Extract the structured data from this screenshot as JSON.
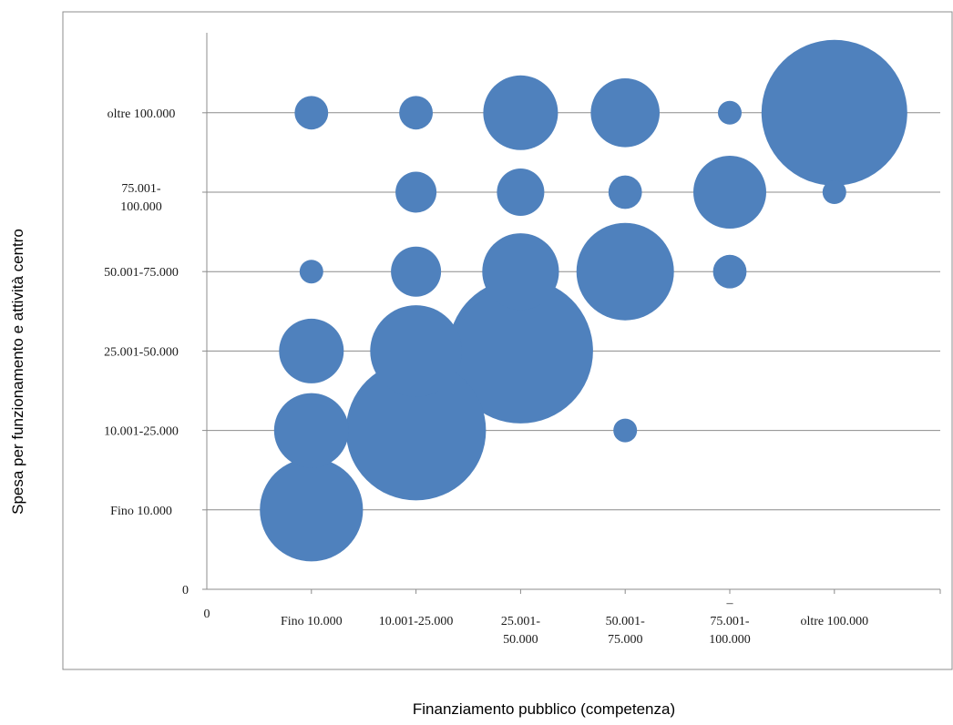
{
  "chart_data": {
    "type": "bubble",
    "xlabel": "Finanziamento  pubblico (competenza)",
    "ylabel": "Spesa per funzionamento e attività centro",
    "x_origin_label": "0",
    "y_origin_label": "0",
    "x_categories": [
      [
        "Fino 10.000"
      ],
      [
        "10.001-25.000"
      ],
      [
        "25.001-",
        "50.000"
      ],
      [
        "50.001-",
        "75.000"
      ],
      [
        "–",
        "75.001-",
        "100.000"
      ],
      [
        "oltre 100.000"
      ]
    ],
    "y_categories": [
      [
        "Fino 10.000"
      ],
      [
        "10.001-25.000"
      ],
      [
        "25.001-50.000"
      ],
      [
        "50.001-75.000"
      ],
      [
        "75.001-",
        "100.000"
      ],
      [
        "oltre 100.000"
      ]
    ],
    "xlim": [
      0,
      6.8
    ],
    "ylim": [
      0,
      6.8
    ],
    "grid": true,
    "legend": "none",
    "bubble_color": "#4F81BD",
    "points": [
      {
        "x": 1,
        "y": 1,
        "size": 38
      },
      {
        "x": 1,
        "y": 2,
        "size": 20
      },
      {
        "x": 1,
        "y": 3,
        "size": 15
      },
      {
        "x": 1,
        "y": 4,
        "size": 2
      },
      {
        "x": 1,
        "y": 6,
        "size": 4
      },
      {
        "x": 2,
        "y": 2,
        "size": 70
      },
      {
        "x": 2,
        "y": 3,
        "size": 30
      },
      {
        "x": 2,
        "y": 4,
        "size": 9
      },
      {
        "x": 2,
        "y": 5,
        "size": 6
      },
      {
        "x": 2,
        "y": 6,
        "size": 4
      },
      {
        "x": 3,
        "y": 3,
        "size": 75
      },
      {
        "x": 3,
        "y": 4,
        "size": 21
      },
      {
        "x": 3,
        "y": 5,
        "size": 8
      },
      {
        "x": 3,
        "y": 6,
        "size": 20
      },
      {
        "x": 4,
        "y": 2,
        "size": 2
      },
      {
        "x": 4,
        "y": 4,
        "size": 34
      },
      {
        "x": 4,
        "y": 5,
        "size": 4
      },
      {
        "x": 4,
        "y": 6,
        "size": 17
      },
      {
        "x": 5,
        "y": 4,
        "size": 4
      },
      {
        "x": 5,
        "y": 5,
        "size": 19
      },
      {
        "x": 5,
        "y": 6,
        "size": 2
      },
      {
        "x": 6,
        "y": 5,
        "size": 2
      },
      {
        "x": 6,
        "y": 6,
        "size": 76
      }
    ]
  }
}
